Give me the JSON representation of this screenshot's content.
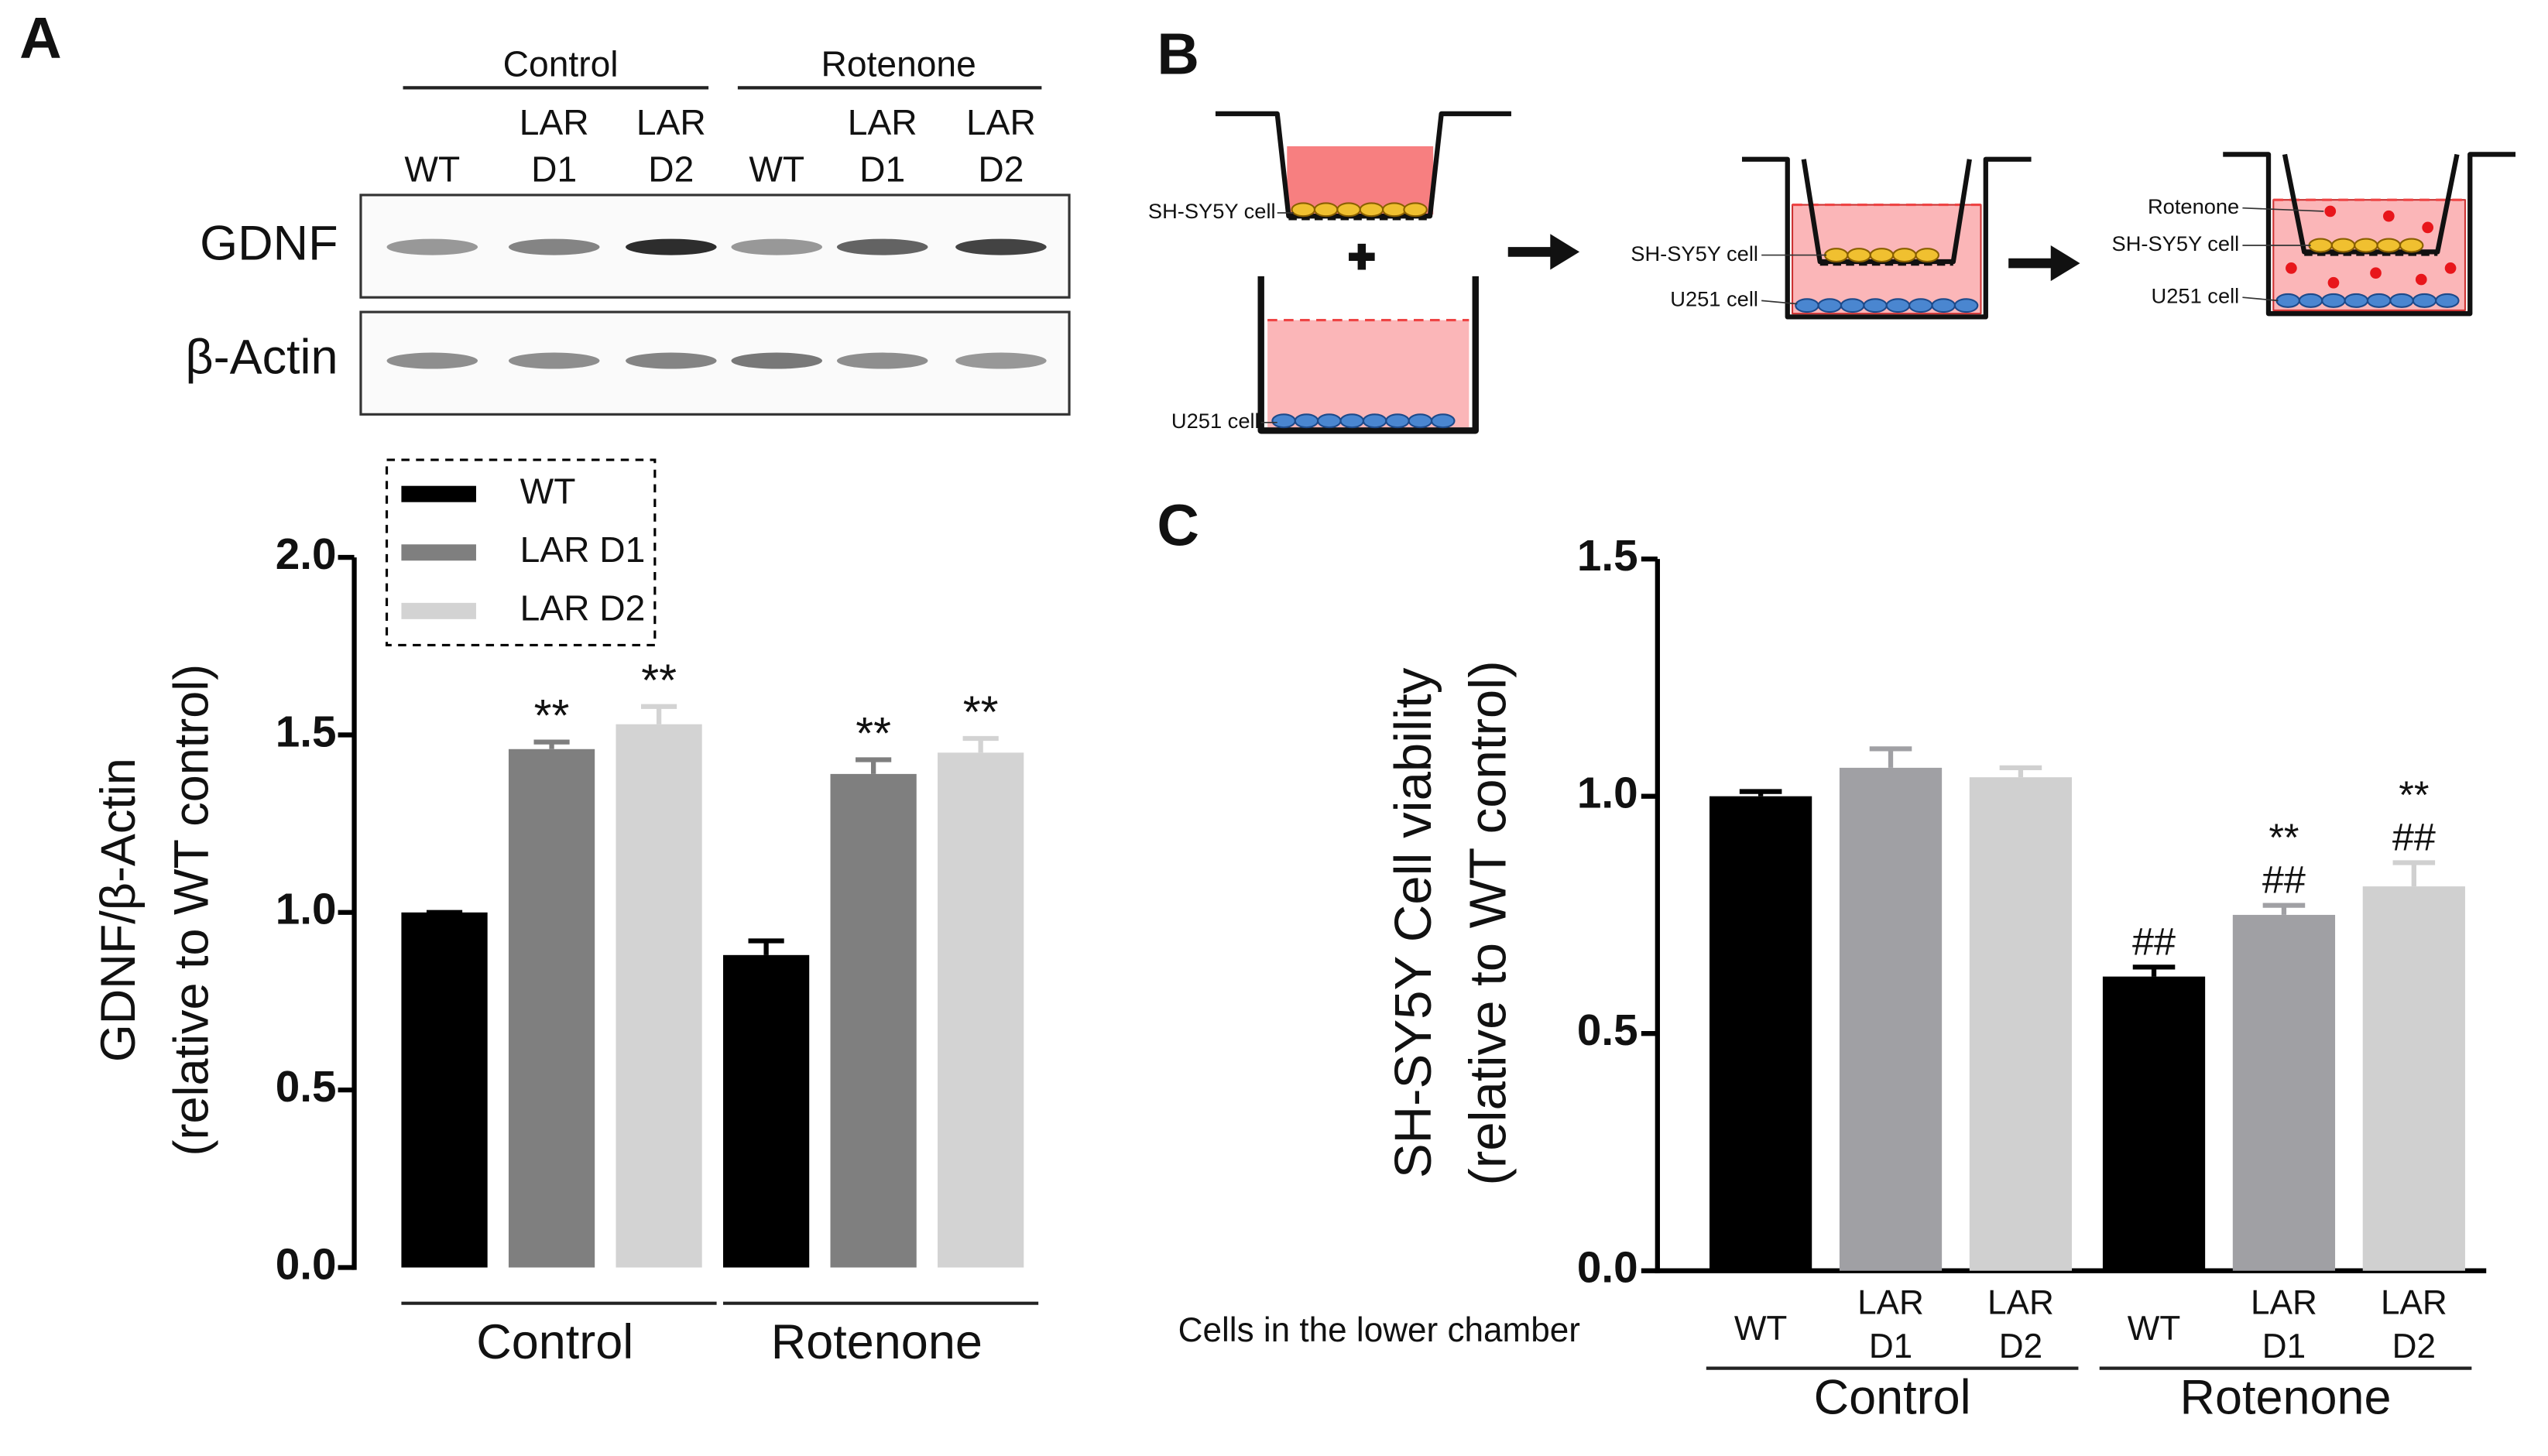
{
  "panels": {
    "a": "A",
    "b": "B",
    "c": "C"
  },
  "blot": {
    "groups": [
      "Control",
      "Rotenone"
    ],
    "lanes": [
      [
        "WT"
      ],
      [
        "LAR",
        "D1"
      ],
      [
        "LAR",
        "D2"
      ],
      [
        "WT"
      ],
      [
        "LAR",
        "D1"
      ],
      [
        "LAR",
        "D2"
      ]
    ],
    "rows": [
      "GDNF",
      "β-Actin"
    ]
  },
  "diagram": {
    "labels": [
      "SH-SY5Y cell",
      "U251 cell",
      "SH-SY5Y cell",
      "U251 cell",
      "Rotenone",
      "SH-SY5Y cell",
      "U251 cell"
    ]
  },
  "chart_data": [
    {
      "type": "grouped_bar",
      "ylabel": [
        "GDNF/β-Actin",
        "(relative to WT control)"
      ],
      "categories": [
        "Control",
        "Rotenone"
      ],
      "series": [
        {
          "name": "WT",
          "color": "#000000",
          "values": [
            1.0,
            0.88
          ],
          "errors": [
            0,
            0.04
          ],
          "labels": [
            null,
            null
          ]
        },
        {
          "name": "LAR D1",
          "color": "#7f7f7f",
          "values": [
            1.46,
            1.39
          ],
          "errors": [
            0.02,
            0.04
          ],
          "labels": [
            "**",
            "**"
          ]
        },
        {
          "name": "LAR D2",
          "color": "#d3d3d3",
          "values": [
            1.53,
            1.45
          ],
          "errors": [
            0.05,
            0.04
          ],
          "labels": [
            "**",
            "**"
          ]
        }
      ],
      "ylim": [
        0,
        2
      ],
      "yticks": [
        {
          "value": 0,
          "label": "0.0"
        },
        0.5,
        {
          "value": 1,
          "label": "1.0"
        },
        1.5,
        {
          "value": 2,
          "label": "2.0"
        }
      ],
      "legend": "top-left"
    },
    {
      "type": "bar",
      "ylabel": [
        "SH-SY5Y Cell viability",
        "(relative to WT control)"
      ],
      "xlabel": "Cells in the lower chamber",
      "categories": [
        [
          "WT"
        ],
        [
          "LAR",
          "D1"
        ],
        [
          "LAR",
          "D2"
        ],
        [
          "WT"
        ],
        [
          "LAR",
          "D1"
        ],
        [
          "LAR",
          "D2"
        ]
      ],
      "groups": [
        "Control",
        "Rotenone"
      ],
      "values": [
        1.0,
        1.06,
        1.04,
        0.62,
        0.75,
        0.81
      ],
      "errors": [
        0.01,
        0.04,
        0.02,
        0.02,
        0.02,
        0.05
      ],
      "colors": [
        "#000000",
        "#a0a0a4",
        "#d0d0d0",
        "#000000",
        "#a0a0a4",
        "#d0d0d0"
      ],
      "annotations": [
        null,
        null,
        null,
        [
          "##"
        ],
        [
          "**",
          "##"
        ],
        [
          "**",
          "##"
        ]
      ],
      "ylim": [
        0,
        1.5
      ],
      "yticks": [
        {
          "value": 0,
          "label": "0.0"
        },
        0.5,
        {
          "value": 1,
          "label": "1.0"
        },
        1.5
      ]
    }
  ]
}
